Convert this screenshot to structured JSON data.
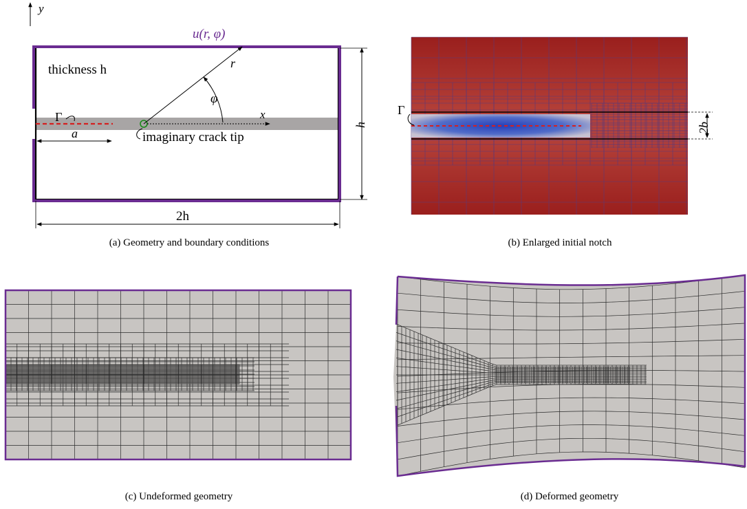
{
  "panel_a": {
    "caption": "(a) Geometry and boundary conditions",
    "y_axis": "y",
    "x_axis": "x",
    "bc_label": "u(r, φ)",
    "thickness": "thickness h",
    "r_label": "r",
    "phi_label": "φ",
    "gamma_label": "Γ",
    "a_label": "a",
    "crack_tip_label": "imaginary crack tip",
    "height_label": "h",
    "width_label": "2h",
    "colors": {
      "boundary": "#6a2c91",
      "crack": "#d42020",
      "band": "#a8a5a5",
      "tip": "#1a8a1a"
    }
  },
  "panel_b": {
    "caption": "(b) Enlarged initial notch",
    "gamma_label": "Γ",
    "width_label": "2b",
    "colors": {
      "background": "#a0231e",
      "notch": "#1e3fb0",
      "mesh": "#3a2a6a"
    }
  },
  "panel_c": {
    "caption": "(c) Undeformed geometry",
    "colors": {
      "fill": "#c8c5c2",
      "mesh": "#2a2a2a",
      "boundary": "#6a2c91"
    }
  },
  "panel_d": {
    "caption": "(d) Deformed geometry",
    "colors": {
      "fill": "#c8c5c2",
      "mesh": "#2a2a2a",
      "boundary": "#6a2c91"
    }
  }
}
